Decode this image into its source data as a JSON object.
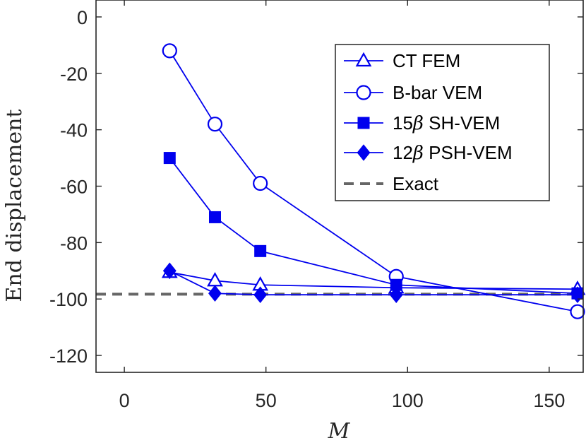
{
  "chart_data": {
    "type": "line",
    "title": "",
    "xlabel": "M",
    "ylabel": "End displacement",
    "xlim": [
      -10,
      162
    ],
    "ylim": [
      -126,
      6
    ],
    "xticks": [
      0,
      50,
      100,
      150
    ],
    "yticks": [
      0,
      -20,
      -40,
      -60,
      -80,
      -100,
      -120
    ],
    "grid": false,
    "legend_position": "top-right",
    "colors": {
      "series": "#0000ee",
      "exact": "#666666",
      "axis": "#262626"
    },
    "series": [
      {
        "name": "CT FEM",
        "marker": "triangle-open",
        "x": [
          16,
          32,
          48,
          96,
          160
        ],
        "y": [
          -90.5,
          -93.5,
          -95,
          -96,
          -96.5
        ]
      },
      {
        "name": "B-bar VEM",
        "marker": "circle-open",
        "x": [
          16,
          32,
          48,
          96,
          160
        ],
        "y": [
          -12,
          -38,
          -59,
          -92,
          -104.5
        ]
      },
      {
        "name": "SH-VEM",
        "legend_prefix": "15",
        "legend_symbol": "β",
        "legend_suffix": " SH-VEM",
        "marker": "square-filled",
        "x": [
          16,
          32,
          48,
          96,
          160
        ],
        "y": [
          -50,
          -71,
          -83,
          -95,
          -98
        ]
      },
      {
        "name": "PSH-VEM",
        "legend_prefix": "12",
        "legend_symbol": "β",
        "legend_suffix": " PSH-VEM",
        "marker": "diamond-filled",
        "x": [
          16,
          32,
          48,
          96,
          160
        ],
        "y": [
          -90,
          -98,
          -98.5,
          -98.5,
          -98.5
        ]
      }
    ],
    "reference": {
      "name": "Exact",
      "value": -98.3
    }
  }
}
